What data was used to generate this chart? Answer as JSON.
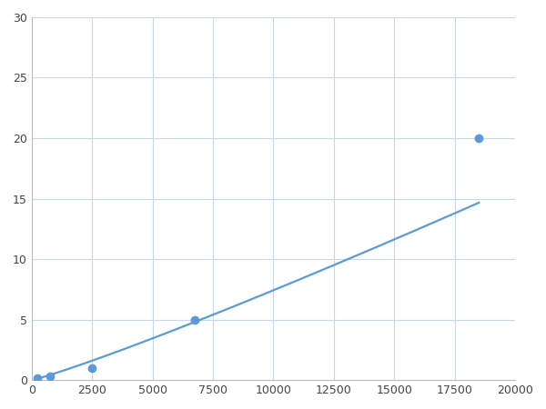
{
  "x_data": [
    250,
    750,
    2500,
    6750,
    18500
  ],
  "y_data": [
    0.2,
    0.3,
    1.0,
    5.0,
    20.0
  ],
  "line_color": "#5b9bd5",
  "marker_color": "#5b9bd5",
  "marker_size": 6,
  "line_width": 1.6,
  "xlim": [
    0,
    20000
  ],
  "ylim": [
    0,
    30
  ],
  "xticks": [
    0,
    2500,
    5000,
    7500,
    10000,
    12500,
    15000,
    17500,
    20000
  ],
  "yticks": [
    0,
    5,
    10,
    15,
    20,
    25,
    30
  ],
  "grid_color": "#c8d8e8",
  "background_color": "#ffffff",
  "figsize": [
    6.0,
    4.5
  ],
  "dpi": 100
}
